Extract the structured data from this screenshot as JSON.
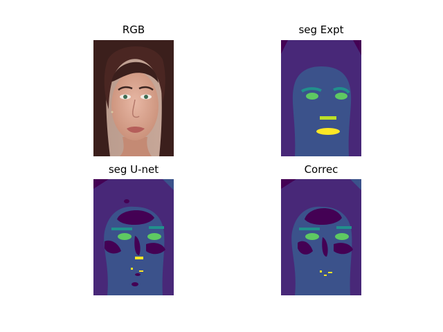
{
  "panels": [
    {
      "id": "rgb",
      "title": "RGB"
    },
    {
      "id": "seg_expt",
      "title": "seg Expt"
    },
    {
      "id": "seg_unet",
      "title": "seg U-net"
    },
    {
      "id": "correc",
      "title": "Correc"
    }
  ],
  "colors": {
    "background": "#ffffff",
    "seg_dark": "#440154",
    "seg_indigo": "#482878",
    "seg_blue": "#3b528b",
    "seg_teal": "#21908c",
    "seg_green": "#5ec962",
    "seg_lime": "#bddf26",
    "seg_yellow": "#fde725"
  }
}
